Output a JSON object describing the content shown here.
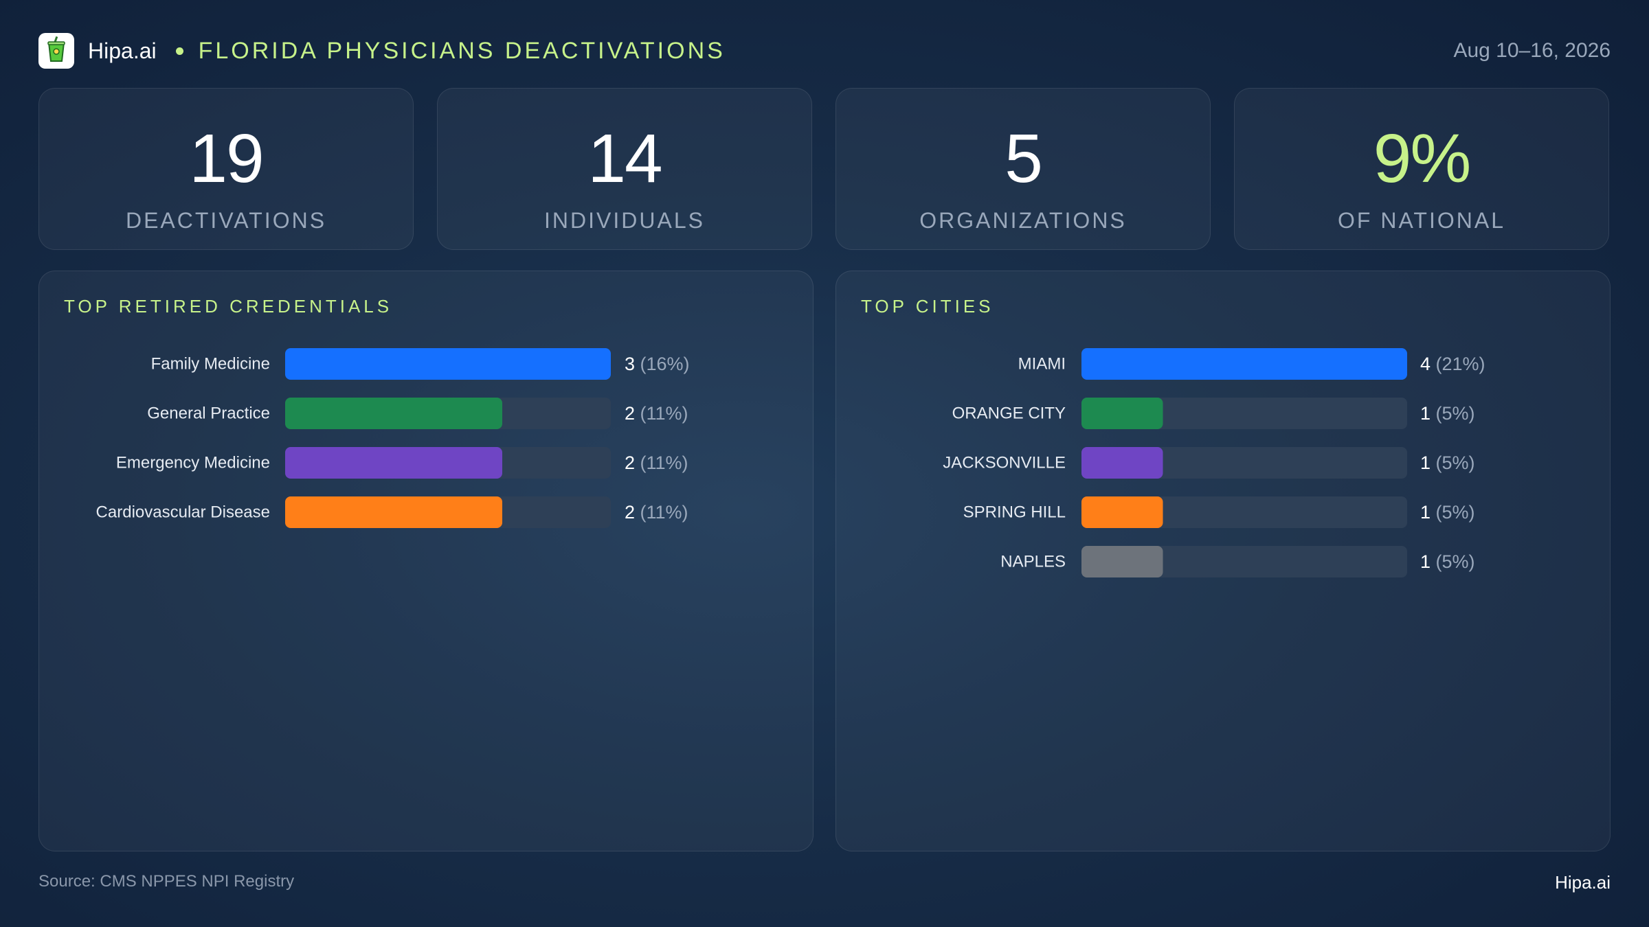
{
  "header": {
    "brand": "Hipa.ai",
    "title": "FLORIDA PHYSICIANS DEACTIVATIONS",
    "date_range": "Aug 10–16, 2026",
    "logo_icon": "green-cup-icon"
  },
  "kpis": [
    {
      "value": "19",
      "label": "DEACTIVATIONS"
    },
    {
      "value": "14",
      "label": "INDIVIDUALS"
    },
    {
      "value": "5",
      "label": "ORGANIZATIONS"
    },
    {
      "value": "9%",
      "label": "OF NATIONAL"
    }
  ],
  "footer": {
    "source": "Source: CMS NPPES NPI Registry",
    "brand": "Hipa.ai"
  },
  "colors": {
    "accent": "#c7f28a",
    "track": "#2e4057",
    "blue": "#1570ff",
    "green": "#1d8a50",
    "purple": "#6f45c4",
    "orange": "#ff7f18",
    "gray": "#6d737b"
  },
  "chart_data": [
    {
      "type": "bar",
      "orientation": "horizontal",
      "title": "TOP RETIRED CREDENTIALS",
      "categories": [
        "Family Medicine",
        "General Practice",
        "Emergency Medicine",
        "Cardiovascular Disease"
      ],
      "values": [
        3,
        2,
        2,
        2
      ],
      "value_labels": [
        "3",
        "2",
        "2",
        "2"
      ],
      "percent_labels": [
        "(16%)",
        "(11%)",
        "(11%)",
        "(11%)"
      ],
      "bar_colors": [
        "#1570ff",
        "#1d8a50",
        "#6f45c4",
        "#ff7f18"
      ],
      "xlim": [
        0,
        3
      ]
    },
    {
      "type": "bar",
      "orientation": "horizontal",
      "title": "TOP CITIES",
      "categories": [
        "MIAMI",
        "ORANGE CITY",
        "JACKSONVILLE",
        "SPRING HILL",
        "NAPLES"
      ],
      "values": [
        4,
        1,
        1,
        1,
        1
      ],
      "value_labels": [
        "4",
        "1",
        "1",
        "1",
        "1"
      ],
      "percent_labels": [
        "(21%)",
        "(5%)",
        "(5%)",
        "(5%)",
        "(5%)"
      ],
      "bar_colors": [
        "#1570ff",
        "#1d8a50",
        "#6f45c4",
        "#ff7f18",
        "#6d737b"
      ],
      "xlim": [
        0,
        4
      ]
    }
  ]
}
